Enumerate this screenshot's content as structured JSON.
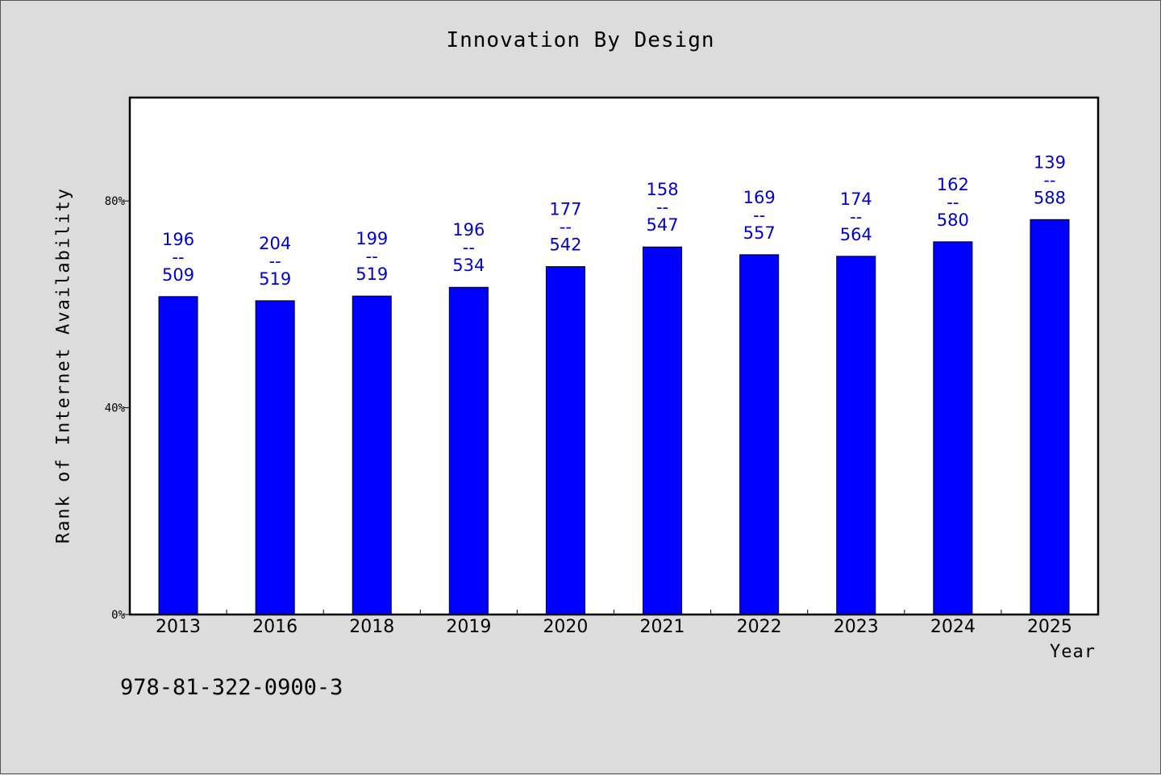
{
  "chart_title": "Innovation By Design",
  "footer_code": "978-81-322-0900-3",
  "colors": {
    "bar": "#0000ff",
    "label": "#0000cc",
    "background": "#dcdcdc",
    "plot": "#ffffff"
  },
  "chart_data": {
    "type": "bar",
    "title": "Innovation By Design",
    "xlabel": "Year",
    "ylabel": "Rank of Internet Availability",
    "ylim": [
      0,
      100
    ],
    "yticks": [
      {
        "value": 0,
        "label": "0%"
      },
      {
        "value": 40,
        "label": "40%"
      },
      {
        "value": 80,
        "label": "80%"
      }
    ],
    "categories": [
      "2013",
      "2016",
      "2018",
      "2019",
      "2020",
      "2021",
      "2022",
      "2023",
      "2024",
      "2025"
    ],
    "values": [
      61.5,
      60.7,
      61.6,
      63.3,
      67.3,
      71.1,
      69.6,
      69.3,
      72.1,
      76.4
    ],
    "data_labels": [
      [
        "196",
        "--",
        "509"
      ],
      [
        "204",
        "--",
        "519"
      ],
      [
        "199",
        "--",
        "519"
      ],
      [
        "196",
        "--",
        "534"
      ],
      [
        "177",
        "--",
        "542"
      ],
      [
        "158",
        "--",
        "547"
      ],
      [
        "169",
        "--",
        "557"
      ],
      [
        "174",
        "--",
        "564"
      ],
      [
        "162",
        "--",
        "580"
      ],
      [
        "139",
        "--",
        "588"
      ]
    ],
    "grid": false,
    "legend": "none"
  }
}
